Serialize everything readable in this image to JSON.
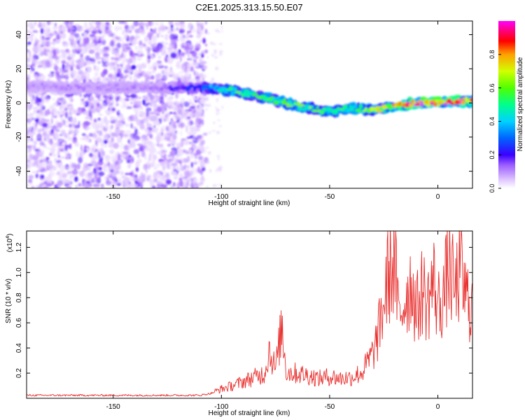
{
  "title": "C2E1.2025.313.15.50.E07",
  "colors": {
    "snr_line": "#e8312f",
    "spectro_scatter": "#8a2be2",
    "colormap": [
      "#f3e6ff",
      "#c79bff",
      "#8a2be2",
      "#3a00ff",
      "#0050ff",
      "#00c8ff",
      "#00ff9a",
      "#4cff00",
      "#c8ff00",
      "#ffd200",
      "#ff8a00",
      "#ff0000",
      "#ff0080",
      "#ff00ff"
    ]
  },
  "chart_data": [
    {
      "type": "heatmap",
      "xlabel": "Height of straight line (km)",
      "ylabel": "Frequency (Hz)",
      "xlim": [
        -190,
        16
      ],
      "ylim": [
        -50,
        48
      ],
      "x_ticks": [
        -150,
        -100,
        -50,
        0
      ],
      "y_ticks": [
        -40,
        -20,
        0,
        20,
        40
      ],
      "noise_region_x": [
        -190,
        -107
      ],
      "ridge": {
        "x": [
          -190,
          -170,
          -150,
          -130,
          -110,
          -100,
          -90,
          -80,
          -70,
          -60,
          -50,
          -40,
          -30,
          -20,
          -10,
          0,
          10,
          16
        ],
        "freq": [
          10,
          9,
          9,
          9,
          9,
          8,
          6,
          3,
          0,
          -3,
          -5,
          -3,
          -4,
          -2,
          0,
          0,
          1,
          1
        ],
        "amplitude": [
          0.1,
          0.1,
          0.1,
          0.12,
          0.25,
          0.45,
          0.55,
          0.5,
          0.55,
          0.55,
          0.55,
          0.5,
          0.6,
          0.75,
          0.85,
          0.9,
          0.85,
          0.8
        ]
      },
      "colorbar": {
        "label": "Normalized spectral amplitude",
        "range": [
          0,
          1
        ],
        "ticks": [
          "0.0",
          "0.2",
          "0.4",
          "0.6",
          "0.8"
        ],
        "tick_values": [
          0,
          0.2,
          0.4,
          0.6,
          0.8
        ]
      }
    },
    {
      "type": "line",
      "xlabel": "Height of straight line (km)",
      "ylabel": "SNR (10 * v/v)",
      "y_multiplier": "(x10",
      "y_multiplier_exp": "4",
      "y_multiplier_close": ")",
      "xlim": [
        -190,
        16
      ],
      "ylim": [
        0,
        1.33
      ],
      "x_ticks": [
        -150,
        -100,
        -50,
        0
      ],
      "y_ticks": [
        0.2,
        0.4,
        0.6,
        0.8,
        1.0,
        1.2
      ],
      "y_tick_labels": [
        "0.2",
        "0.4",
        "0.6",
        "0.8",
        "1.0",
        "1.2"
      ],
      "series": [
        {
          "x": [
            -190,
            -170,
            -150,
            -130,
            -110,
            -105,
            -100,
            -95,
            -90,
            -85,
            -80,
            -78,
            -75,
            -72,
            -70,
            -65,
            -60,
            -55,
            -50,
            -45,
            -40,
            -35,
            -30,
            -28,
            -25,
            -23,
            -20,
            -18,
            -15,
            -12,
            -10,
            -7,
            -5,
            -2,
            0,
            3,
            5,
            8,
            10,
            13,
            16
          ],
          "y": [
            0.03,
            0.03,
            0.03,
            0.03,
            0.03,
            0.05,
            0.09,
            0.12,
            0.16,
            0.2,
            0.24,
            0.47,
            0.28,
            0.7,
            0.25,
            0.24,
            0.22,
            0.19,
            0.21,
            0.19,
            0.2,
            0.25,
            0.43,
            0.57,
            0.9,
            1.18,
            1.3,
            0.75,
            0.98,
            1.12,
            0.82,
            1.06,
            0.9,
            1.13,
            0.88,
            1.02,
            1.28,
            1.0,
            1.24,
            0.97,
            0.88
          ]
        }
      ]
    }
  ]
}
